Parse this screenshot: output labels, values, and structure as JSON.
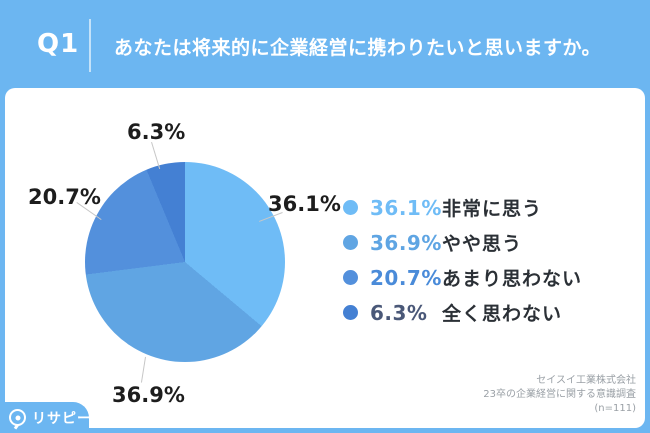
{
  "header": {
    "q_label": "Q1",
    "question": "あなたは将来的に企業経営に携わりたいと思いますか。"
  },
  "chart_data": {
    "type": "pie",
    "title": "あなたは将来的に企業経営に携わりたいと思いますか。",
    "categories": [
      "非常に思う",
      "やや思う",
      "あまり思わない",
      "全く思わない"
    ],
    "values": [
      36.1,
      36.9,
      20.7,
      6.3
    ],
    "unit": "%",
    "colors": [
      "#6FBCF6",
      "#60A5E3",
      "#5390DC",
      "#4480D3"
    ],
    "slice_labels": [
      "36.1%",
      "36.9%",
      "20.7%",
      "6.3%"
    ],
    "start_angle_deg": 0,
    "direction": "clockwise",
    "legend_position": "right"
  },
  "legend": {
    "items": [
      {
        "pct": "36.1%",
        "label": "非常に思う",
        "color": "#6FBCF6",
        "pct_color": "#6FBCF6"
      },
      {
        "pct": "36.9%",
        "label": "やや思う",
        "color": "#60A5E3",
        "pct_color": "#5FA5E3"
      },
      {
        "pct": "20.7%",
        "label": "あまり思わない",
        "color": "#5390DC",
        "pct_color": "#4A8BD9"
      },
      {
        "pct": "6.3%",
        "label": "全く思わない",
        "color": "#4480D3",
        "pct_color": "#4A5878"
      }
    ]
  },
  "source": {
    "line1": "セイスイ工業株式会社",
    "line2": "23卒の企業経営に関する意識調査",
    "line3": "(n=111)"
  },
  "logo": {
    "text": "リサピー"
  },
  "theme": {
    "background": "#6CB6F1",
    "card": "#ffffff",
    "header_text": "#ffffff"
  }
}
